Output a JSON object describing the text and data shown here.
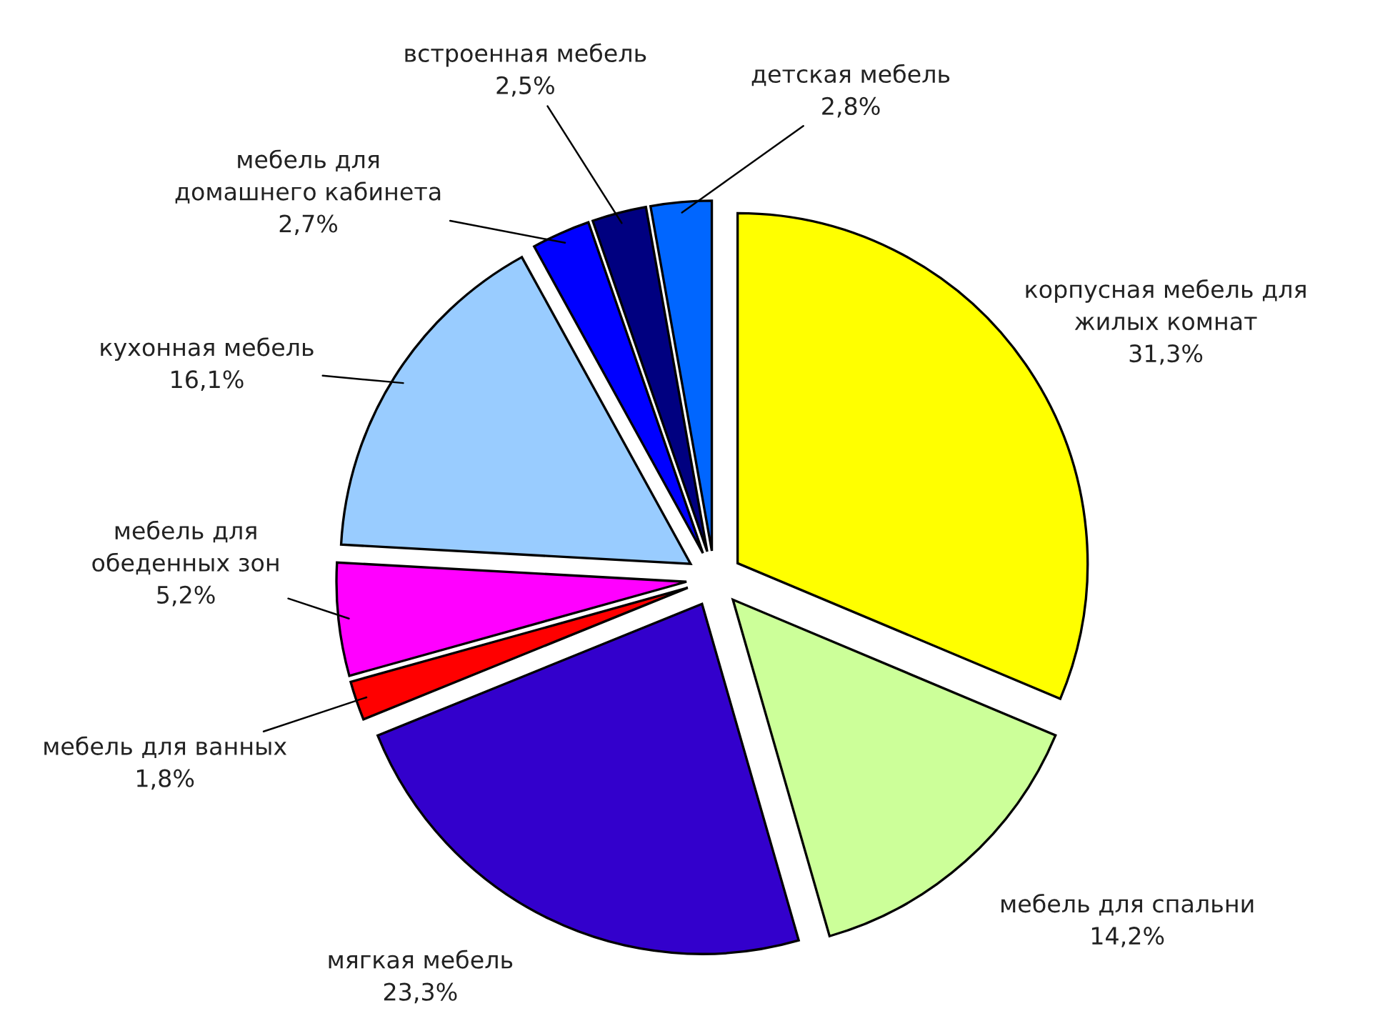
{
  "chart_data": {
    "type": "pie",
    "categories": [
      "корпусная мебель для\nжилых комнат",
      "мебель для спальни",
      "мягкая мебель",
      "мебель для ванных",
      "мебель для\nобеденных зон",
      "кухонная мебель",
      "мебель для\nдомашнего кабинета",
      "встроенная мебель",
      "детская мебель"
    ],
    "values": [
      31.3,
      14.2,
      23.3,
      1.8,
      5.2,
      16.1,
      2.7,
      2.5,
      2.8
    ],
    "colors": [
      "#ffff00",
      "#ccff99",
      "#3300cc",
      "#ff0000",
      "#ff00ff",
      "#99ccff",
      "#0000ff",
      "#000080",
      "#0066ff"
    ],
    "value_labels": [
      "31,3%",
      "14,2%",
      "23,3%",
      "1,8%",
      "5,2%",
      "16,1%",
      "2,7%",
      "2,5%",
      "2,8%"
    ]
  }
}
